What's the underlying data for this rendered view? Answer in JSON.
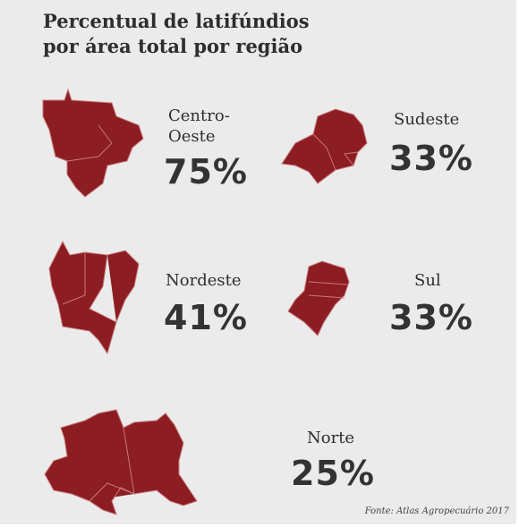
{
  "title": "Percentual de latifúndios\npor área total por região",
  "regions": [
    {
      "name": "Centro-\nOeste",
      "value": "75%"
    },
    {
      "name": "Sudeste",
      "value": "33%"
    },
    {
      "name": "Nordeste",
      "value": "41%"
    },
    {
      "name": "Sul",
      "value": "33%"
    },
    {
      "name": "Norte",
      "value": "25%"
    }
  ],
  "source": "Fonte: Atlas Agropecuário 2017"
}
